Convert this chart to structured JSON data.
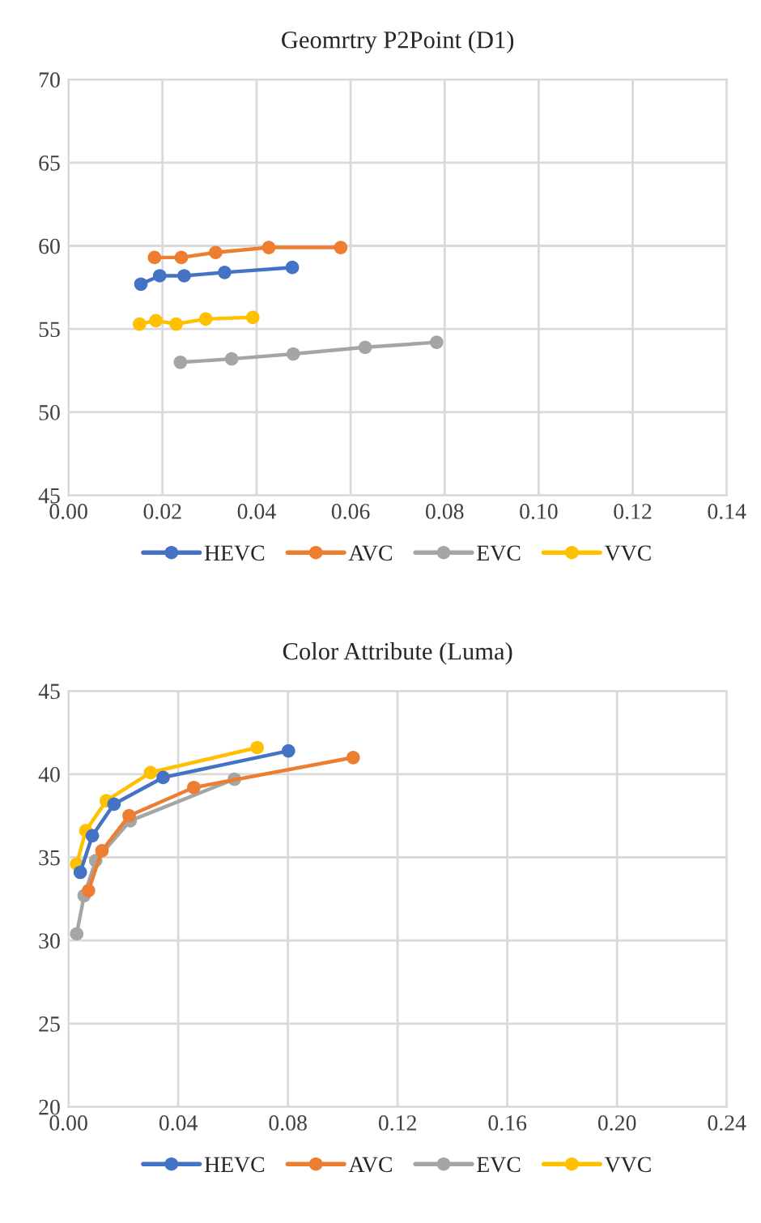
{
  "chart_data": [
    {
      "type": "line",
      "title": "Geomrtry P2Point (D1)",
      "xlim": [
        0,
        0.14
      ],
      "xticks": [
        {
          "value": 0,
          "label": "0.00"
        },
        {
          "value": 0.02,
          "label": "0.02"
        },
        {
          "value": 0.04,
          "label": "0.04"
        },
        {
          "value": 0.06,
          "label": "0.06"
        },
        {
          "value": 0.08,
          "label": "0.08"
        },
        {
          "value": 0.1,
          "label": "0.10"
        },
        {
          "value": 0.12,
          "label": "0.12"
        },
        {
          "value": 0.14,
          "label": "0.14"
        }
      ],
      "ylim": [
        45,
        70
      ],
      "yticks": [
        45,
        50,
        55,
        60,
        65,
        70
      ],
      "grid": true,
      "legend": "bottom",
      "marker": "circle",
      "line_style": "solid",
      "series": [
        {
          "name": "HEVC",
          "color": "#4472c4",
          "x": [
            0.0154,
            0.0194,
            0.0246,
            0.0332,
            0.0476
          ],
          "values": [
            57.7,
            58.2,
            58.2,
            58.4,
            58.7
          ]
        },
        {
          "name": "AVC",
          "color": "#ed7d31",
          "x": [
            0.0183,
            0.024,
            0.0313,
            0.0426,
            0.0579
          ],
          "values": [
            59.3,
            59.3,
            59.6,
            59.9,
            59.9
          ]
        },
        {
          "name": "EVC",
          "color": "#a5a5a5",
          "x": [
            0.0238,
            0.0347,
            0.0478,
            0.0631,
            0.0783
          ],
          "values": [
            53.0,
            53.2,
            53.5,
            53.9,
            54.2
          ]
        },
        {
          "name": "VVC",
          "color": "#ffc000",
          "x": [
            0.0151,
            0.0186,
            0.0229,
            0.0292,
            0.0392
          ],
          "values": [
            55.3,
            55.5,
            55.3,
            55.6,
            55.7
          ]
        }
      ]
    },
    {
      "type": "line",
      "title": "Color Attribute (Luma)",
      "xlim": [
        0,
        0.24
      ],
      "xticks": [
        {
          "value": 0,
          "label": "0.00"
        },
        {
          "value": 0.04,
          "label": "0.04"
        },
        {
          "value": 0.08,
          "label": "0.08"
        },
        {
          "value": 0.12,
          "label": "0.12"
        },
        {
          "value": 0.16,
          "label": "0.16"
        },
        {
          "value": 0.2,
          "label": "0.20"
        },
        {
          "value": 0.24,
          "label": "0.24"
        }
      ],
      "ylim": [
        20,
        45
      ],
      "yticks": [
        20,
        25,
        30,
        35,
        40,
        45
      ],
      "grid": true,
      "legend": "bottom",
      "marker": "circle",
      "line_style": "solid",
      "series": [
        {
          "name": "HEVC",
          "color": "#4472c4",
          "x": [
            0.0043,
            0.0087,
            0.0166,
            0.0345,
            0.0802
          ],
          "values": [
            34.1,
            36.3,
            38.2,
            39.8,
            41.4
          ]
        },
        {
          "name": "AVC",
          "color": "#ed7d31",
          "x": [
            0.0073,
            0.0122,
            0.0221,
            0.0457,
            0.1038
          ],
          "values": [
            33.0,
            35.4,
            37.5,
            39.2,
            41.0
          ]
        },
        {
          "name": "EVC",
          "color": "#a5a5a5",
          "x": [
            0.003,
            0.0057,
            0.0099,
            0.0225,
            0.0605
          ],
          "values": [
            30.4,
            32.7,
            34.8,
            37.2,
            39.7
          ]
        },
        {
          "name": "VVC",
          "color": "#ffc000",
          "x": [
            0.003,
            0.0063,
            0.0138,
            0.0299,
            0.0688
          ],
          "values": [
            34.6,
            36.6,
            38.4,
            40.1,
            41.6
          ]
        }
      ]
    }
  ]
}
